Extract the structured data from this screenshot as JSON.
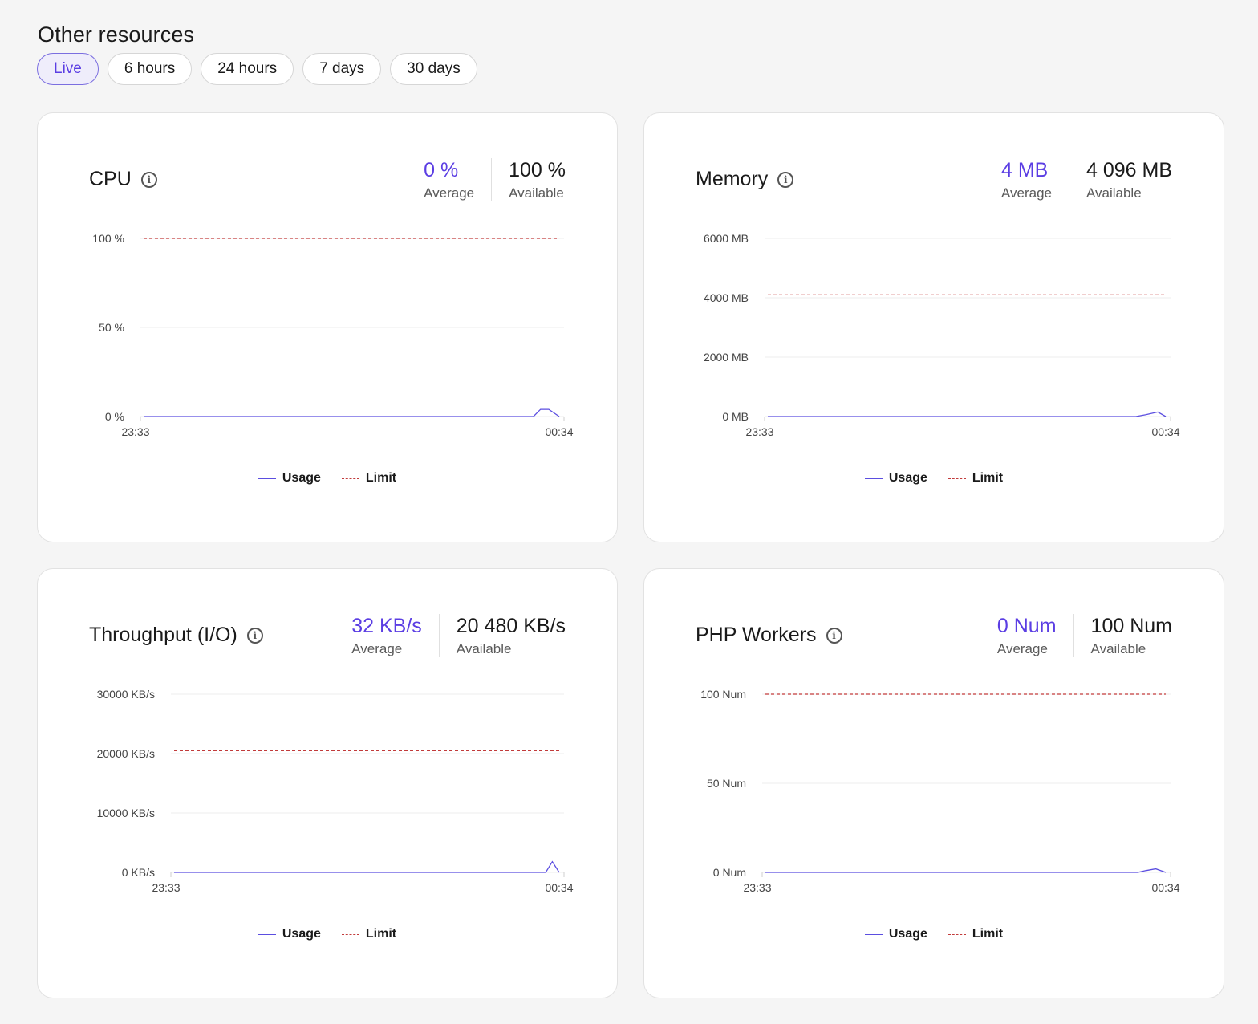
{
  "section_title": "Other resources",
  "time_ranges": [
    {
      "label": "Live",
      "active": true
    },
    {
      "label": "6 hours",
      "active": false
    },
    {
      "label": "24 hours",
      "active": false
    },
    {
      "label": "7 days",
      "active": false
    },
    {
      "label": "30 days",
      "active": false
    }
  ],
  "colors": {
    "usage": "#5b4ee0",
    "limit": "#c23b3b",
    "accent": "#5b3ee3",
    "grid": "#ececec"
  },
  "legend": {
    "usage": "Usage",
    "limit": "Limit"
  },
  "cards": [
    {
      "title": "CPU",
      "average_value": "0 %",
      "average_label": "Average",
      "available_value": "100 %",
      "available_label": "Available"
    },
    {
      "title": "Memory",
      "average_value": "4 MB",
      "average_label": "Average",
      "available_value": "4 096 MB",
      "available_label": "Available"
    },
    {
      "title": "Throughput (I/O)",
      "average_value": "32 KB/s",
      "average_label": "Average",
      "available_value": "20 480 KB/s",
      "available_label": "Available"
    },
    {
      "title": "PHP Workers",
      "average_value": "0 Num",
      "average_label": "Average",
      "available_value": "100 Num",
      "available_label": "Available"
    }
  ],
  "chart_data": [
    {
      "type": "line",
      "y_ticks": [
        0,
        50,
        100
      ],
      "y_tick_labels": [
        "0 %",
        "50 %",
        "100 %"
      ],
      "ylim": [
        0,
        100
      ],
      "limit": 100,
      "x_tick_labels": [
        "23:33",
        "00:34"
      ],
      "series": [
        {
          "name": "Usage",
          "points": [
            [
              0,
              0
            ],
            [
              0.938,
              0
            ],
            [
              0.955,
              4
            ],
            [
              0.975,
              4
            ],
            [
              1,
              0
            ]
          ]
        },
        {
          "name": "Limit",
          "points": [
            [
              0,
              100
            ],
            [
              1,
              100
            ]
          ]
        }
      ]
    },
    {
      "type": "line",
      "y_ticks": [
        0,
        2000,
        4000,
        6000
      ],
      "y_tick_labels": [
        "0 MB",
        "2000 MB",
        "4000 MB",
        "6000 MB"
      ],
      "ylim": [
        0,
        6000
      ],
      "limit": 4096,
      "x_tick_labels": [
        "23:33",
        "00:34"
      ],
      "series": [
        {
          "name": "Usage",
          "points": [
            [
              0,
              0
            ],
            [
              0.925,
              0
            ],
            [
              0.95,
              60
            ],
            [
              0.98,
              150
            ],
            [
              1,
              0
            ]
          ]
        },
        {
          "name": "Limit",
          "points": [
            [
              0,
              4096
            ],
            [
              1,
              4096
            ]
          ]
        }
      ]
    },
    {
      "type": "line",
      "y_ticks": [
        0,
        10000,
        20000,
        30000
      ],
      "y_tick_labels": [
        "0 KB/s",
        "10000 KB/s",
        "20000 KB/s",
        "30000 KB/s"
      ],
      "ylim": [
        0,
        30000
      ],
      "limit": 20480,
      "x_tick_labels": [
        "23:33",
        "00:34"
      ],
      "series": [
        {
          "name": "Usage",
          "points": [
            [
              0,
              0
            ],
            [
              0.965,
              0
            ],
            [
              0.982,
              1800
            ],
            [
              1,
              0
            ]
          ]
        },
        {
          "name": "Limit",
          "points": [
            [
              0,
              20480
            ],
            [
              1,
              20480
            ]
          ]
        }
      ]
    },
    {
      "type": "line",
      "y_ticks": [
        0,
        50,
        100
      ],
      "y_tick_labels": [
        "0 Num",
        "50 Num",
        "100 Num"
      ],
      "ylim": [
        0,
        100
      ],
      "limit": 100,
      "x_tick_labels": [
        "23:33",
        "00:34"
      ],
      "series": [
        {
          "name": "Usage",
          "points": [
            [
              0,
              0
            ],
            [
              0.93,
              0
            ],
            [
              0.95,
              1
            ],
            [
              0.975,
              2
            ],
            [
              1,
              0
            ]
          ]
        },
        {
          "name": "Limit",
          "points": [
            [
              0,
              100
            ],
            [
              1,
              100
            ]
          ]
        }
      ]
    }
  ]
}
